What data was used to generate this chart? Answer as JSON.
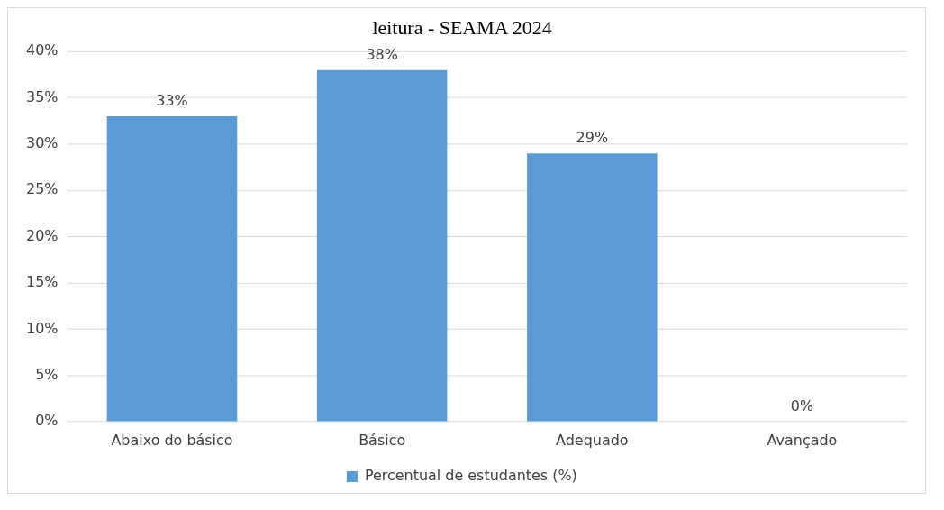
{
  "chart_data": {
    "type": "bar",
    "title": "leitura - SEAMA 2024",
    "categories": [
      "Abaixo do básico",
      "Básico",
      "Adequado",
      "Avançado"
    ],
    "series": [
      {
        "name": "Percentual de estudantes (%)",
        "color": "#5b9bd5",
        "values": [
          33,
          38,
          29,
          0
        ],
        "value_labels": [
          "33%",
          "38%",
          "29%",
          "0%"
        ]
      }
    ],
    "ylim": [
      0,
      40
    ],
    "yticks": [
      {
        "value": 0,
        "label": "0%"
      },
      {
        "value": 5,
        "label": "5%"
      },
      {
        "value": 10,
        "label": "10%"
      },
      {
        "value": 15,
        "label": "15%"
      },
      {
        "value": 20,
        "label": "20%"
      },
      {
        "value": 25,
        "label": "25%"
      },
      {
        "value": 30,
        "label": "30%"
      },
      {
        "value": 35,
        "label": "35%"
      },
      {
        "value": 40,
        "label": "40%"
      }
    ],
    "grid": "y",
    "legend": "bottom"
  }
}
